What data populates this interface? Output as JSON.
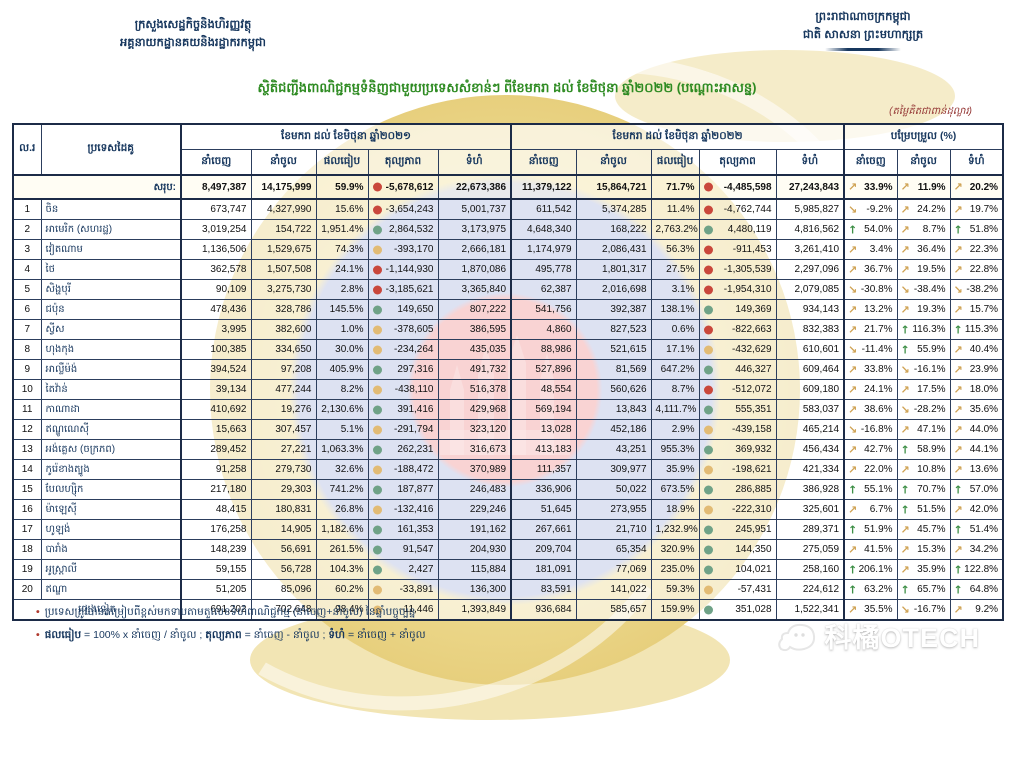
{
  "header": {
    "ministry_line1": "ក្រសួងសេដ្ឋកិច្ចនិងហិរញ្ញវត្ថុ",
    "ministry_line2": "អគ្គនាយកដ្ឋានគយនិងរដ្ឋាករកម្ពុជា",
    "kingdom_line1": "ព្រះរាជាណាចក្រកម្ពុជា",
    "kingdom_line2": "ជាតិ សាសនា ព្រះមហាក្សត្រ",
    "title": "ស្ថិតិជញ្ជីងពាណិជ្ជកម្មទំនិញជាមួយប្រទេសសំខាន់ៗ ពីខែមករា ដល់ ខែមិថុនា ឆ្នាំ២០២២ (បណ្តោះអាសន្ន)",
    "unit_note": "(តម្លៃគិតជាពាន់ដុល្លារ)"
  },
  "legend_colors": {
    "dot_red": "#c9473b",
    "dot_green": "#6fa287",
    "dot_yellow": "#e2bb74",
    "arrow_green": "#3d8f46",
    "arrow_tan": "#cfa253",
    "title_green": "#2e8b22",
    "header_navy": "#17375E"
  },
  "table": {
    "columns": {
      "no": "ល.រ",
      "country": "ប្រទេសដៃគូ",
      "group_2021": "ខែមករា ដល់ ខែមិថុនា ឆ្នាំ២០២១",
      "group_2022": "ខែមករា ដល់ ខែមិថុនា ឆ្នាំ២០២២",
      "group_change": "បម្រែបម្រួល (%)",
      "sub": {
        "export": "នាំចេញ",
        "import": "នាំចូល",
        "ratio": "ផលធៀប",
        "balance": "តុល្យភាព",
        "volume": "ទំហំ"
      }
    },
    "rows": [
      {
        "no": "",
        "country": "សរុប:",
        "type": "total",
        "y2021": {
          "export": "8,497,387",
          "import": "14,175,999",
          "ratio": "59.9%",
          "dot": "red",
          "balance": "-5,678,612",
          "volume": "22,673,386"
        },
        "y2022": {
          "export": "11,379,122",
          "import": "15,864,721",
          "ratio": "71.7%",
          "dot": "red",
          "balance": "-4,485,598",
          "volume": "27,243,843"
        },
        "change": [
          {
            "dir": "ne",
            "value": "33.9%"
          },
          {
            "dir": "ne",
            "value": "11.9%"
          },
          {
            "dir": "ne",
            "value": "20.2%"
          }
        ]
      },
      {
        "no": "1",
        "country": "ចិន",
        "type": "data",
        "y2021": {
          "export": "673,747",
          "import": "4,327,990",
          "ratio": "15.6%",
          "dot": "red",
          "balance": "-3,654,243",
          "volume": "5,001,737"
        },
        "y2022": {
          "export": "611,542",
          "import": "5,374,285",
          "ratio": "11.4%",
          "dot": "red",
          "balance": "-4,762,744",
          "volume": "5,985,827"
        },
        "change": [
          {
            "dir": "se",
            "value": "-9.2%"
          },
          {
            "dir": "ne",
            "value": "24.2%"
          },
          {
            "dir": "ne",
            "value": "19.7%"
          }
        ]
      },
      {
        "no": "2",
        "country": "អាមេរិក (សហរដ្ឋ)",
        "type": "data",
        "y2021": {
          "export": "3,019,254",
          "import": "154,722",
          "ratio": "1,951.4%",
          "dot": "green",
          "balance": "2,864,532",
          "volume": "3,173,975"
        },
        "y2022": {
          "export": "4,648,340",
          "import": "168,222",
          "ratio": "2,763.2%",
          "dot": "green",
          "balance": "4,480,119",
          "volume": "4,816,562"
        },
        "change": [
          {
            "dir": "up",
            "value": "54.0%"
          },
          {
            "dir": "ne",
            "value": "8.7%"
          },
          {
            "dir": "up",
            "value": "51.8%"
          }
        ]
      },
      {
        "no": "3",
        "country": "វៀតណាម",
        "type": "data",
        "y2021": {
          "export": "1,136,506",
          "import": "1,529,675",
          "ratio": "74.3%",
          "dot": "yellow",
          "balance": "-393,170",
          "volume": "2,666,181"
        },
        "y2022": {
          "export": "1,174,979",
          "import": "2,086,431",
          "ratio": "56.3%",
          "dot": "red",
          "balance": "-911,453",
          "volume": "3,261,410"
        },
        "change": [
          {
            "dir": "ne",
            "value": "3.4%"
          },
          {
            "dir": "ne",
            "value": "36.4%"
          },
          {
            "dir": "ne",
            "value": "22.3%"
          }
        ]
      },
      {
        "no": "4",
        "country": "ថៃ",
        "type": "data",
        "y2021": {
          "export": "362,578",
          "import": "1,507,508",
          "ratio": "24.1%",
          "dot": "red",
          "balance": "-1,144,930",
          "volume": "1,870,086"
        },
        "y2022": {
          "export": "495,778",
          "import": "1,801,317",
          "ratio": "27.5%",
          "dot": "red",
          "balance": "-1,305,539",
          "volume": "2,297,096"
        },
        "change": [
          {
            "dir": "ne",
            "value": "36.7%"
          },
          {
            "dir": "ne",
            "value": "19.5%"
          },
          {
            "dir": "ne",
            "value": "22.8%"
          }
        ]
      },
      {
        "no": "5",
        "country": "សិង្ហបុរី",
        "type": "data",
        "y2021": {
          "export": "90,109",
          "import": "3,275,730",
          "ratio": "2.8%",
          "dot": "red",
          "balance": "-3,185,621",
          "volume": "3,365,840"
        },
        "y2022": {
          "export": "62,387",
          "import": "2,016,698",
          "ratio": "3.1%",
          "dot": "red",
          "balance": "-1,954,310",
          "volume": "2,079,085"
        },
        "change": [
          {
            "dir": "se",
            "value": "-30.8%"
          },
          {
            "dir": "se",
            "value": "-38.4%"
          },
          {
            "dir": "se",
            "value": "-38.2%"
          }
        ]
      },
      {
        "no": "6",
        "country": "ជប៉ុន",
        "type": "data",
        "y2021": {
          "export": "478,436",
          "import": "328,786",
          "ratio": "145.5%",
          "dot": "green",
          "balance": "149,650",
          "volume": "807,222"
        },
        "y2022": {
          "export": "541,756",
          "import": "392,387",
          "ratio": "138.1%",
          "dot": "green",
          "balance": "149,369",
          "volume": "934,143"
        },
        "change": [
          {
            "dir": "ne",
            "value": "13.2%"
          },
          {
            "dir": "ne",
            "value": "19.3%"
          },
          {
            "dir": "ne",
            "value": "15.7%"
          }
        ]
      },
      {
        "no": "7",
        "country": "ស្វីស",
        "type": "data",
        "y2021": {
          "export": "3,995",
          "import": "382,600",
          "ratio": "1.0%",
          "dot": "yellow",
          "balance": "-378,605",
          "volume": "386,595"
        },
        "y2022": {
          "export": "4,860",
          "import": "827,523",
          "ratio": "0.6%",
          "dot": "red",
          "balance": "-822,663",
          "volume": "832,383"
        },
        "change": [
          {
            "dir": "ne",
            "value": "21.7%"
          },
          {
            "dir": "up",
            "value": "116.3%"
          },
          {
            "dir": "up",
            "value": "115.3%"
          }
        ]
      },
      {
        "no": "8",
        "country": "ហុងកុង",
        "type": "data",
        "y2021": {
          "export": "100,385",
          "import": "334,650",
          "ratio": "30.0%",
          "dot": "yellow",
          "balance": "-234,264",
          "volume": "435,035"
        },
        "y2022": {
          "export": "88,986",
          "import": "521,615",
          "ratio": "17.1%",
          "dot": "yellow",
          "balance": "-432,629",
          "volume": "610,601"
        },
        "change": [
          {
            "dir": "se",
            "value": "-11.4%"
          },
          {
            "dir": "up",
            "value": "55.9%"
          },
          {
            "dir": "ne",
            "value": "40.4%"
          }
        ]
      },
      {
        "no": "9",
        "country": "អាល្លឺម៉ង់",
        "type": "data",
        "y2021": {
          "export": "394,524",
          "import": "97,208",
          "ratio": "405.9%",
          "dot": "green",
          "balance": "297,316",
          "volume": "491,732"
        },
        "y2022": {
          "export": "527,896",
          "import": "81,569",
          "ratio": "647.2%",
          "dot": "green",
          "balance": "446,327",
          "volume": "609,464"
        },
        "change": [
          {
            "dir": "ne",
            "value": "33.8%"
          },
          {
            "dir": "se",
            "value": "-16.1%"
          },
          {
            "dir": "ne",
            "value": "23.9%"
          }
        ]
      },
      {
        "no": "10",
        "country": "តៃវ៉ាន់",
        "type": "data",
        "y2021": {
          "export": "39,134",
          "import": "477,244",
          "ratio": "8.2%",
          "dot": "yellow",
          "balance": "-438,110",
          "volume": "516,378"
        },
        "y2022": {
          "export": "48,554",
          "import": "560,626",
          "ratio": "8.7%",
          "dot": "red",
          "balance": "-512,072",
          "volume": "609,180"
        },
        "change": [
          {
            "dir": "ne",
            "value": "24.1%"
          },
          {
            "dir": "ne",
            "value": "17.5%"
          },
          {
            "dir": "ne",
            "value": "18.0%"
          }
        ]
      },
      {
        "no": "11",
        "country": "កាណាដា",
        "type": "data",
        "y2021": {
          "export": "410,692",
          "import": "19,276",
          "ratio": "2,130.6%",
          "dot": "green",
          "balance": "391,416",
          "volume": "429,968"
        },
        "y2022": {
          "export": "569,194",
          "import": "13,843",
          "ratio": "4,111.7%",
          "dot": "green",
          "balance": "555,351",
          "volume": "583,037"
        },
        "change": [
          {
            "dir": "ne",
            "value": "38.6%"
          },
          {
            "dir": "se",
            "value": "-28.2%"
          },
          {
            "dir": "ne",
            "value": "35.6%"
          }
        ]
      },
      {
        "no": "12",
        "country": "ឥណ្ឌូណេស៊ី",
        "type": "data",
        "y2021": {
          "export": "15,663",
          "import": "307,457",
          "ratio": "5.1%",
          "dot": "yellow",
          "balance": "-291,794",
          "volume": "323,120"
        },
        "y2022": {
          "export": "13,028",
          "import": "452,186",
          "ratio": "2.9%",
          "dot": "yellow",
          "balance": "-439,158",
          "volume": "465,214"
        },
        "change": [
          {
            "dir": "se",
            "value": "-16.8%"
          },
          {
            "dir": "ne",
            "value": "47.1%"
          },
          {
            "dir": "ne",
            "value": "44.0%"
          }
        ]
      },
      {
        "no": "13",
        "country": "អង់គ្លេស (ចក្រភព)",
        "type": "data",
        "y2021": {
          "export": "289,452",
          "import": "27,221",
          "ratio": "1,063.3%",
          "dot": "green",
          "balance": "262,231",
          "volume": "316,673"
        },
        "y2022": {
          "export": "413,183",
          "import": "43,251",
          "ratio": "955.3%",
          "dot": "green",
          "balance": "369,932",
          "volume": "456,434"
        },
        "change": [
          {
            "dir": "ne",
            "value": "42.7%"
          },
          {
            "dir": "up",
            "value": "58.9%"
          },
          {
            "dir": "ne",
            "value": "44.1%"
          }
        ]
      },
      {
        "no": "14",
        "country": "កូរ៉េខាងត្បូង",
        "type": "data",
        "y2021": {
          "export": "91,258",
          "import": "279,730",
          "ratio": "32.6%",
          "dot": "yellow",
          "balance": "-188,472",
          "volume": "370,989"
        },
        "y2022": {
          "export": "111,357",
          "import": "309,977",
          "ratio": "35.9%",
          "dot": "yellow",
          "balance": "-198,621",
          "volume": "421,334"
        },
        "change": [
          {
            "dir": "ne",
            "value": "22.0%"
          },
          {
            "dir": "ne",
            "value": "10.8%"
          },
          {
            "dir": "ne",
            "value": "13.6%"
          }
        ]
      },
      {
        "no": "15",
        "country": "បែលហ្ស៊ិក",
        "type": "data",
        "y2021": {
          "export": "217,180",
          "import": "29,303",
          "ratio": "741.2%",
          "dot": "green",
          "balance": "187,877",
          "volume": "246,483"
        },
        "y2022": {
          "export": "336,906",
          "import": "50,022",
          "ratio": "673.5%",
          "dot": "green",
          "balance": "286,885",
          "volume": "386,928"
        },
        "change": [
          {
            "dir": "up",
            "value": "55.1%"
          },
          {
            "dir": "up",
            "value": "70.7%"
          },
          {
            "dir": "up",
            "value": "57.0%"
          }
        ]
      },
      {
        "no": "16",
        "country": "ម៉ាឡេស៊ី",
        "type": "data",
        "y2021": {
          "export": "48,415",
          "import": "180,831",
          "ratio": "26.8%",
          "dot": "yellow",
          "balance": "-132,416",
          "volume": "229,246"
        },
        "y2022": {
          "export": "51,645",
          "import": "273,955",
          "ratio": "18.9%",
          "dot": "yellow",
          "balance": "-222,310",
          "volume": "325,601"
        },
        "change": [
          {
            "dir": "ne",
            "value": "6.7%"
          },
          {
            "dir": "up",
            "value": "51.5%"
          },
          {
            "dir": "ne",
            "value": "42.0%"
          }
        ]
      },
      {
        "no": "17",
        "country": "ហូឡង់",
        "type": "data",
        "y2021": {
          "export": "176,258",
          "import": "14,905",
          "ratio": "1,182.6%",
          "dot": "green",
          "balance": "161,353",
          "volume": "191,162"
        },
        "y2022": {
          "export": "267,661",
          "import": "21,710",
          "ratio": "1,232.9%",
          "dot": "green",
          "balance": "245,951",
          "volume": "289,371"
        },
        "change": [
          {
            "dir": "up",
            "value": "51.9%"
          },
          {
            "dir": "ne",
            "value": "45.7%"
          },
          {
            "dir": "up",
            "value": "51.4%"
          }
        ]
      },
      {
        "no": "18",
        "country": "បារាំង",
        "type": "data",
        "y2021": {
          "export": "148,239",
          "import": "56,691",
          "ratio": "261.5%",
          "dot": "green",
          "balance": "91,547",
          "volume": "204,930"
        },
        "y2022": {
          "export": "209,704",
          "import": "65,354",
          "ratio": "320.9%",
          "dot": "green",
          "balance": "144,350",
          "volume": "275,059"
        },
        "change": [
          {
            "dir": "ne",
            "value": "41.5%"
          },
          {
            "dir": "ne",
            "value": "15.3%"
          },
          {
            "dir": "ne",
            "value": "34.2%"
          }
        ]
      },
      {
        "no": "19",
        "country": "អូស្ត្រាលី",
        "type": "data",
        "y2021": {
          "export": "59,155",
          "import": "56,728",
          "ratio": "104.3%",
          "dot": "green",
          "balance": "2,427",
          "volume": "115,884"
        },
        "y2022": {
          "export": "181,091",
          "import": "77,069",
          "ratio": "235.0%",
          "dot": "green",
          "balance": "104,021",
          "volume": "258,160"
        },
        "change": [
          {
            "dir": "up",
            "value": "206.1%"
          },
          {
            "dir": "ne",
            "value": "35.9%"
          },
          {
            "dir": "up",
            "value": "122.8%"
          }
        ]
      },
      {
        "no": "20",
        "country": "ឥណ្ឌា",
        "type": "data",
        "y2021": {
          "export": "51,205",
          "import": "85,096",
          "ratio": "60.2%",
          "dot": "yellow",
          "balance": "-33,891",
          "volume": "136,300"
        },
        "y2022": {
          "export": "83,591",
          "import": "141,022",
          "ratio": "59.3%",
          "dot": "yellow",
          "balance": "-57,431",
          "volume": "224,612"
        },
        "change": [
          {
            "dir": "up",
            "value": "63.2%"
          },
          {
            "dir": "up",
            "value": "65.7%"
          },
          {
            "dir": "up",
            "value": "64.8%"
          }
        ]
      },
      {
        "no": "",
        "country": "ផ្សេងទៀត",
        "type": "others",
        "y2021": {
          "export": "691,202",
          "import": "702,648",
          "ratio": "98.4%",
          "dot": "yellow",
          "balance": "-11,446",
          "volume": "1,393,849"
        },
        "y2022": {
          "export": "936,684",
          "import": "585,657",
          "ratio": "159.9%",
          "dot": "green",
          "balance": "351,028",
          "volume": "1,522,341"
        },
        "change": [
          {
            "dir": "ne",
            "value": "35.5%"
          },
          {
            "dir": "se",
            "value": "-16.7%"
          },
          {
            "dir": "ne",
            "value": "9.2%"
          }
        ]
      }
    ]
  },
  "footnotes": {
    "line1": "ប្រទេសត្រូវបានតម្រៀបពីខ្ពស់មកទាបតាមតួលេខទំហំពាណិជ្ជកម្ម (នាំចេញ+នាំចូល) នៃឆ្នាំបច្ចុប្បន្ន",
    "line2_segments": [
      {
        "text": "ផលធៀប",
        "bold": true
      },
      {
        "text": " = 100% x នាំចេញ / នាំចូល ; ",
        "bold": false
      },
      {
        "text": "តុល្យភាព",
        "bold": true
      },
      {
        "text": " = នាំចេញ - នាំចូល ; ",
        "bold": false
      },
      {
        "text": "ទំហំ",
        "bold": true
      },
      {
        "text": " = នាំចេញ + នាំចូល",
        "bold": false
      }
    ]
  },
  "watermark": {
    "text": "科橘OTECH"
  }
}
